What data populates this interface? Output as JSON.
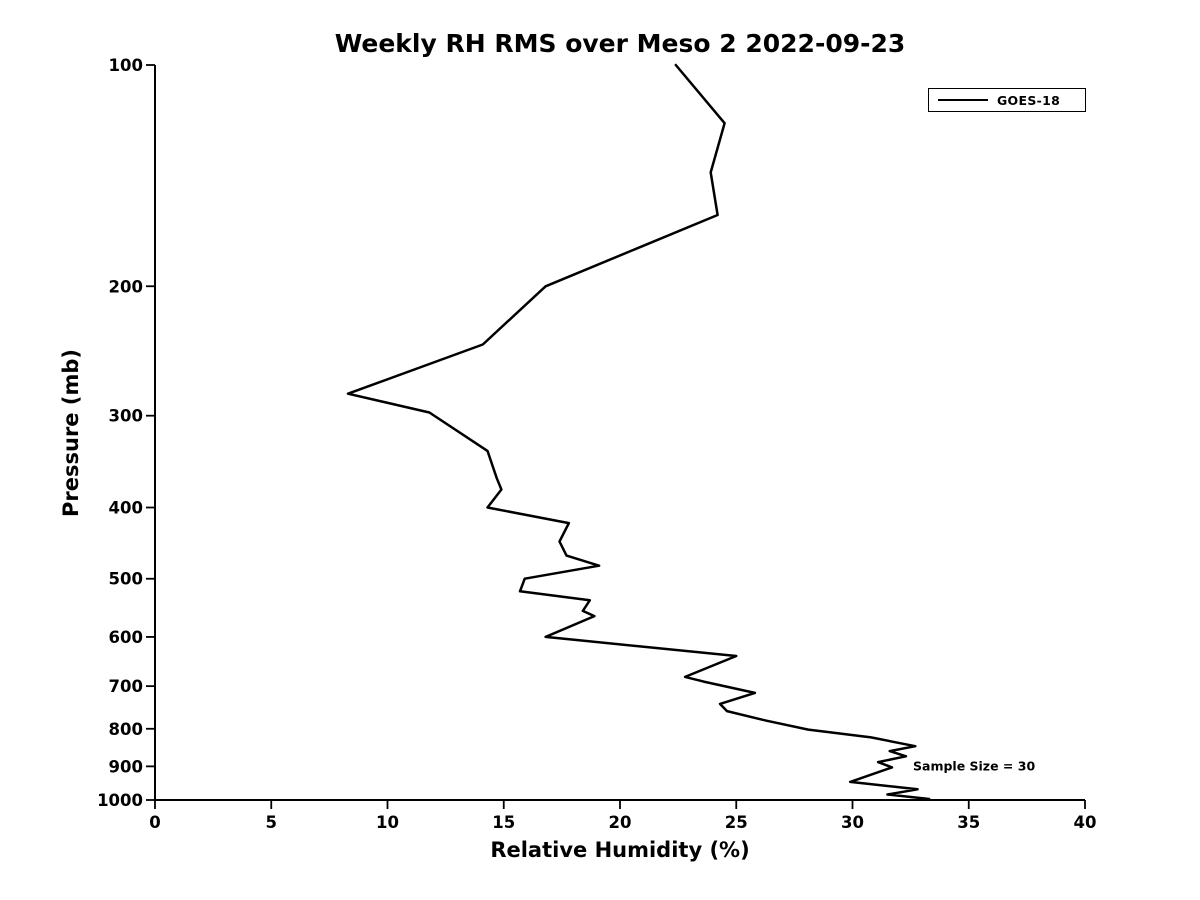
{
  "chart_data": {
    "type": "line",
    "title": "Weekly RH RMS over Meso 2 2022-09-23",
    "xlabel": "Relative Humidity (%)",
    "ylabel": "Pressure (mb)",
    "xlim": [
      0,
      40
    ],
    "xticks": [
      0,
      5,
      10,
      15,
      20,
      25,
      30,
      35,
      40
    ],
    "ylim": [
      100,
      1000
    ],
    "yscale": "log",
    "y_inverted": true,
    "yticks": [
      100,
      200,
      300,
      400,
      500,
      600,
      700,
      800,
      900,
      1000
    ],
    "grid": false,
    "line_width": 2.5,
    "legend": {
      "position": "top-right",
      "entries": [
        {
          "label": "GOES-18",
          "color": "#000000"
        }
      ]
    },
    "annotations": [
      {
        "text": "Sample Size = 30",
        "rh": 32.6,
        "pressure": 900
      }
    ],
    "series": [
      {
        "name": "GOES-18",
        "color": "#000000",
        "point_format": [
          "rh_percent",
          "pressure_mb"
        ],
        "points": [
          [
            22.4,
            100
          ],
          [
            24.5,
            120
          ],
          [
            23.9,
            140
          ],
          [
            24.2,
            160
          ],
          [
            16.8,
            200
          ],
          [
            14.1,
            240
          ],
          [
            8.3,
            280
          ],
          [
            11.8,
            297
          ],
          [
            14.3,
            335
          ],
          [
            14.7,
            365
          ],
          [
            14.9,
            378
          ],
          [
            14.3,
            400
          ],
          [
            17.8,
            420
          ],
          [
            17.4,
            445
          ],
          [
            17.7,
            465
          ],
          [
            19.1,
            480
          ],
          [
            15.9,
            500
          ],
          [
            15.7,
            520
          ],
          [
            18.7,
            535
          ],
          [
            18.4,
            553
          ],
          [
            18.9,
            562
          ],
          [
            16.8,
            600
          ],
          [
            25.0,
            637
          ],
          [
            22.8,
            680
          ],
          [
            23.6,
            690
          ],
          [
            25.8,
            715
          ],
          [
            24.3,
            740
          ],
          [
            24.6,
            757
          ],
          [
            26.3,
            780
          ],
          [
            28.1,
            802
          ],
          [
            30.8,
            822
          ],
          [
            32.7,
            845
          ],
          [
            31.6,
            858
          ],
          [
            32.3,
            872
          ],
          [
            31.1,
            888
          ],
          [
            31.7,
            903
          ],
          [
            29.9,
            945
          ],
          [
            32.8,
            967
          ],
          [
            31.5,
            983
          ],
          [
            33.3,
            997
          ]
        ]
      }
    ]
  }
}
